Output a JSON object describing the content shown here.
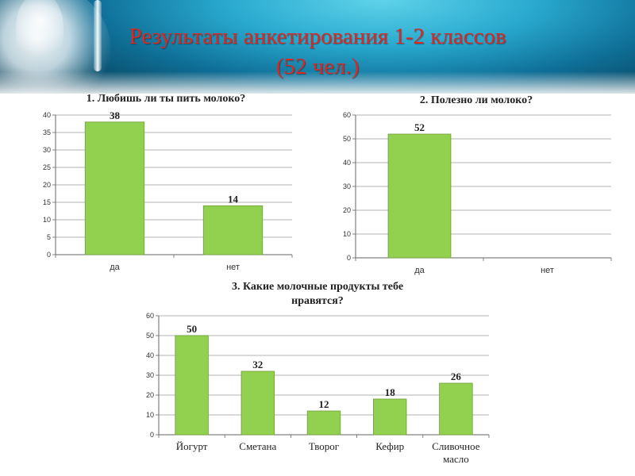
{
  "header": {
    "title_line1": "Результаты анкетирования 1-2 классов",
    "title_line2": "(52 чел.)"
  },
  "colors": {
    "bar": "#92d050",
    "bar_stroke": "#6f9e3a",
    "title": "#e0271f",
    "grid": "#9a9a9a"
  },
  "chart_data": [
    {
      "type": "bar",
      "title": "1. Любишь ли ты пить молоко?",
      "categories": [
        "да",
        "нет"
      ],
      "values": [
        38,
        14
      ],
      "ylim": [
        0,
        40
      ],
      "yticks": [
        0,
        5,
        10,
        15,
        20,
        25,
        30,
        35,
        40
      ],
      "grid": true,
      "legend": "none",
      "data_labels": true
    },
    {
      "type": "bar",
      "title": "2. Полезно ли молоко?",
      "categories": [
        "да",
        "нет"
      ],
      "values": [
        52,
        0
      ],
      "value_labels": [
        "52",
        ""
      ],
      "ylim": [
        0,
        60
      ],
      "yticks": [
        0,
        10,
        20,
        30,
        40,
        50,
        60
      ],
      "grid": true,
      "legend": "none",
      "data_labels": true
    },
    {
      "type": "bar",
      "title_lines": [
        "3. Какие молочные продукты тебе",
        "нравятся?"
      ],
      "categories": [
        "Йогурт",
        "Сметана",
        "Творог",
        "Кефир",
        "Сливочное масло"
      ],
      "category_lines": [
        [
          "Йогурт"
        ],
        [
          "Сметана"
        ],
        [
          "Творог"
        ],
        [
          "Кефир"
        ],
        [
          "Сливочное",
          "масло"
        ]
      ],
      "values": [
        50,
        32,
        12,
        18,
        26
      ],
      "ylim": [
        0,
        60
      ],
      "yticks": [
        0,
        10,
        20,
        30,
        40,
        50,
        60
      ],
      "grid": true,
      "legend": "none",
      "data_labels": true
    }
  ]
}
